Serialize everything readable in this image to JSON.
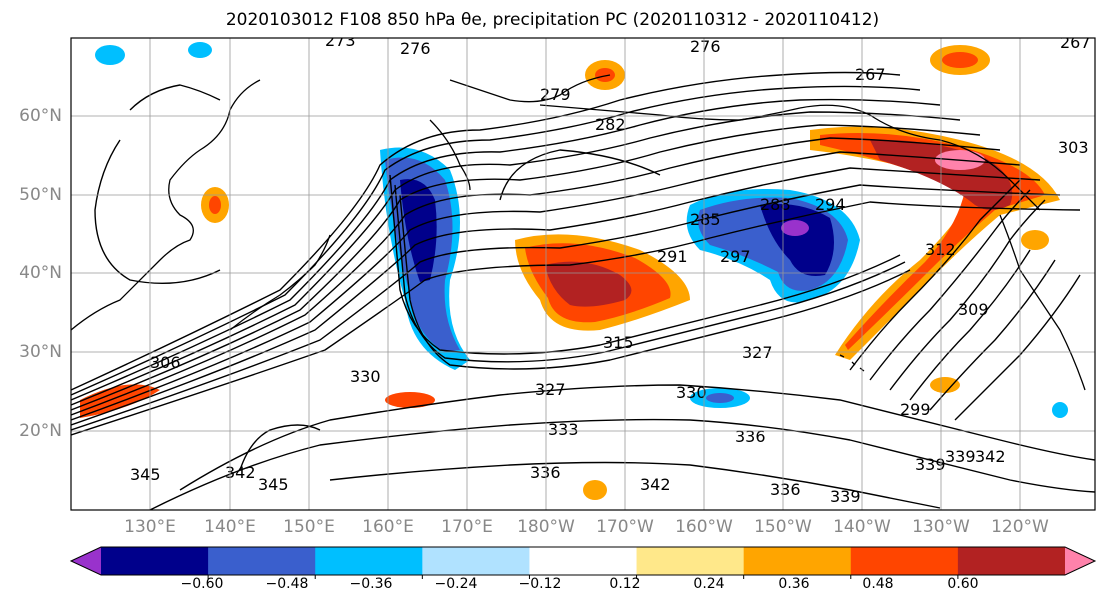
{
  "title": "2020103012 F108 850 hPa θe, precipitation PC (2020110312 - 2020110412)",
  "lat_labels": [
    "60°N",
    "50°N",
    "40°N",
    "30°N",
    "20°N"
  ],
  "lon_labels": [
    "130°E",
    "140°E",
    "150°E",
    "160°E",
    "170°E",
    "180°W",
    "170°W",
    "160°W",
    "150°W",
    "140°W",
    "130°W",
    "120°W"
  ],
  "contour_labels": [
    "273",
    "276",
    "276",
    "267",
    "267",
    "279",
    "282",
    "285",
    "288",
    "294",
    "291",
    "297",
    "303",
    "306",
    "309",
    "312",
    "315",
    "327",
    "327",
    "330",
    "330",
    "333",
    "336",
    "336",
    "336",
    "339",
    "339",
    "339",
    "342",
    "342",
    "342",
    "345",
    "345",
    "299"
  ],
  "colorbar": {
    "ticks": [
      "−0.60",
      "−0.48",
      "−0.36",
      "−0.24",
      "−0.12",
      "0.12",
      "0.24",
      "0.36",
      "0.48",
      "0.60"
    ],
    "colors": [
      "#9932cc",
      "#00008b",
      "#3a5fcd",
      "#00bfff",
      "#b0e2ff",
      "#ffffff",
      "#ffe88a",
      "#ffa500",
      "#ff4500",
      "#b22222",
      "#ff82ab"
    ]
  }
}
